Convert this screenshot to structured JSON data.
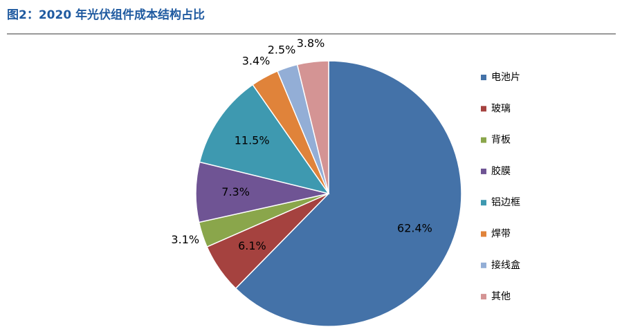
{
  "chart_data": {
    "type": "pie",
    "title": "图2：2020 年光伏组件成本结构占比",
    "categories": [
      "电池片",
      "玻璃",
      "背板",
      "胶膜",
      "铝边框",
      "焊带",
      "接线盒",
      "其他"
    ],
    "values": [
      62.4,
      6.1,
      3.1,
      7.3,
      11.5,
      3.4,
      2.5,
      3.8
    ],
    "value_labels": [
      "62.4%",
      "6.1%",
      "3.1%",
      "7.3%",
      "11.5%",
      "3.4%",
      "2.5%",
      "3.8%"
    ],
    "colors": [
      "#4472a8",
      "#a5423f",
      "#8aa64b",
      "#6f5494",
      "#3e99b0",
      "#e0833a",
      "#93aed6",
      "#d49494"
    ],
    "legend": "right"
  }
}
